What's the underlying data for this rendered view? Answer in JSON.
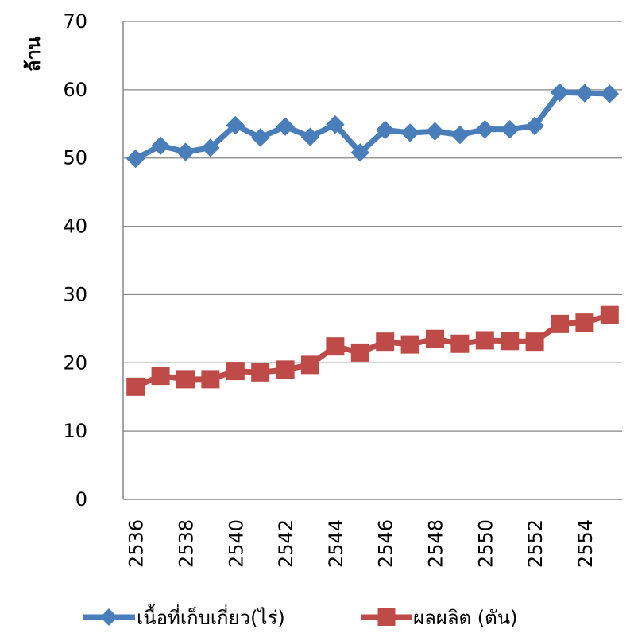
{
  "chart_data": {
    "type": "line",
    "ylabel": "ล้าน",
    "xlabel": "",
    "ylim": [
      0,
      70
    ],
    "y_ticks": [
      "0",
      "10",
      "20",
      "30",
      "40",
      "50",
      "60",
      "70"
    ],
    "categories": [
      "2536",
      "2537",
      "2538",
      "2539",
      "2540",
      "2541",
      "2542",
      "2543",
      "2544",
      "2545",
      "2546",
      "2547",
      "2548",
      "2549",
      "2550",
      "2551",
      "2552",
      "2553",
      "2554",
      "2555"
    ],
    "x_tick_labels": [
      "2536",
      "2538",
      "2540",
      "2542",
      "2544",
      "2546",
      "2548",
      "2550",
      "2552",
      "2554"
    ],
    "grid": true,
    "legend_position": "bottom",
    "series": [
      {
        "name": "เนื้อที่เก็บเกี่ยว(ไร่)",
        "color": "#4a7ebb",
        "marker": "diamond",
        "values": [
          49.9,
          51.8,
          50.9,
          51.5,
          54.8,
          53.0,
          54.6,
          53.1,
          54.9,
          50.8,
          54.1,
          53.7,
          53.9,
          53.4,
          54.2,
          54.2,
          54.7,
          59.6,
          59.5,
          59.4
        ]
      },
      {
        "name": "ผลผลิต (ตัน)",
        "color": "#be4b48",
        "marker": "square",
        "values": [
          16.5,
          18.1,
          17.6,
          17.6,
          18.8,
          18.6,
          19.0,
          19.7,
          22.4,
          21.5,
          23.1,
          22.7,
          23.5,
          22.8,
          23.3,
          23.2,
          23.1,
          25.7,
          25.9,
          27.0
        ]
      }
    ]
  }
}
